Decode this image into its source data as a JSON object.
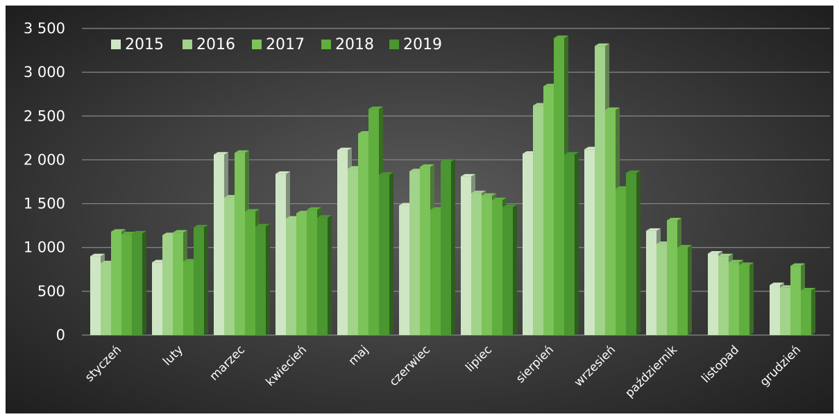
{
  "chart_data": {
    "type": "bar",
    "categories": [
      "styczeń",
      "luty",
      "marzec",
      "kwiecień",
      "maj",
      "czerwiec",
      "lipiec",
      "sierpień",
      "wrzesień",
      "październik",
      "listopad",
      "grudzień"
    ],
    "series": [
      {
        "name": "2015",
        "color": "#cfe6c4",
        "values": [
          900,
          830,
          2060,
          1840,
          2110,
          1480,
          1810,
          2070,
          2120,
          1190,
          930,
          570
        ]
      },
      {
        "name": "2016",
        "color": "#a2d38a",
        "values": [
          820,
          1140,
          1570,
          1330,
          1900,
          1870,
          1620,
          2620,
          3300,
          1040,
          900,
          540
        ]
      },
      {
        "name": "2017",
        "color": "#7cc35a",
        "values": [
          1180,
          1170,
          2080,
          1390,
          2300,
          1920,
          1590,
          2840,
          2570,
          1310,
          830,
          790
        ]
      },
      {
        "name": "2018",
        "color": "#5fae3e",
        "values": [
          1150,
          840,
          1410,
          1430,
          2580,
          1430,
          1540,
          3390,
          1670,
          1000,
          800,
          510
        ]
      },
      {
        "name": "2019",
        "color": "#4a9630",
        "values": [
          1160,
          1230,
          1240,
          1340,
          1830,
          1980,
          1460,
          2060,
          1850,
          null,
          null,
          null
        ]
      }
    ],
    "y_ticks": [
      "0",
      "500",
      "1 000",
      "1 500",
      "2 000",
      "2 500",
      "3 000",
      "3 500"
    ],
    "ylim": [
      0,
      3500
    ],
    "grid": true,
    "legend": "top-left"
  }
}
